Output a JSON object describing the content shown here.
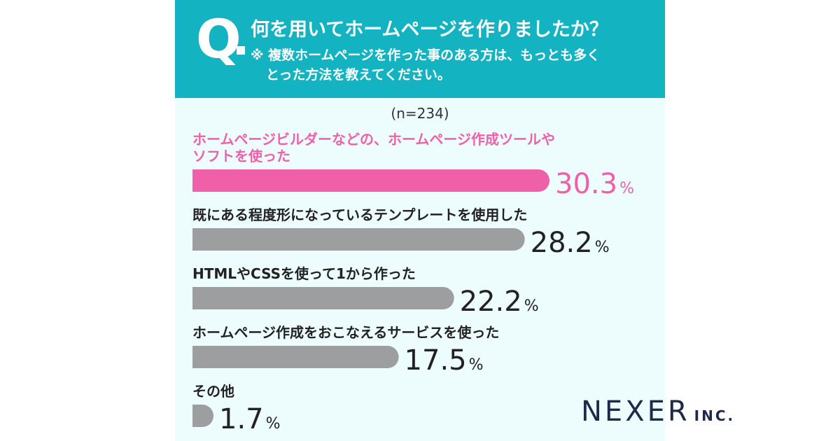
{
  "header": {
    "q_mark": "Q",
    "question": "何を用いてホームページを作りましたか？",
    "note_line1": "※ 複数ホームページを作った事のある方は、もっとも多く",
    "note_line2": "とった方法を教えてください。"
  },
  "sample_size": "(n=234)",
  "colors": {
    "header_bg": "#13b3c2",
    "card_bg": "#edfcfd",
    "highlight": "#f060a8",
    "bar_gray": "#9d9ea0",
    "text_dark": "#222222"
  },
  "chart_data": {
    "type": "bar",
    "orientation": "horizontal",
    "unit": "%",
    "categories": [
      [
        "ホームページビルダーなどの、ホームページ作成ツールや",
        "ソフトを使った"
      ],
      [
        "既にある程度形になっているテンプレートを使用した"
      ],
      [
        "HTMLやCSSを使って1から作った"
      ],
      [
        "ホームページ作成をおこなえるサービスを使った"
      ],
      [
        "その他"
      ]
    ],
    "values": [
      30.3,
      28.2,
      22.2,
      17.5,
      1.7
    ],
    "highlight_index": 0
  },
  "logo": {
    "main": "NEXER",
    "suffix": "INC."
  }
}
